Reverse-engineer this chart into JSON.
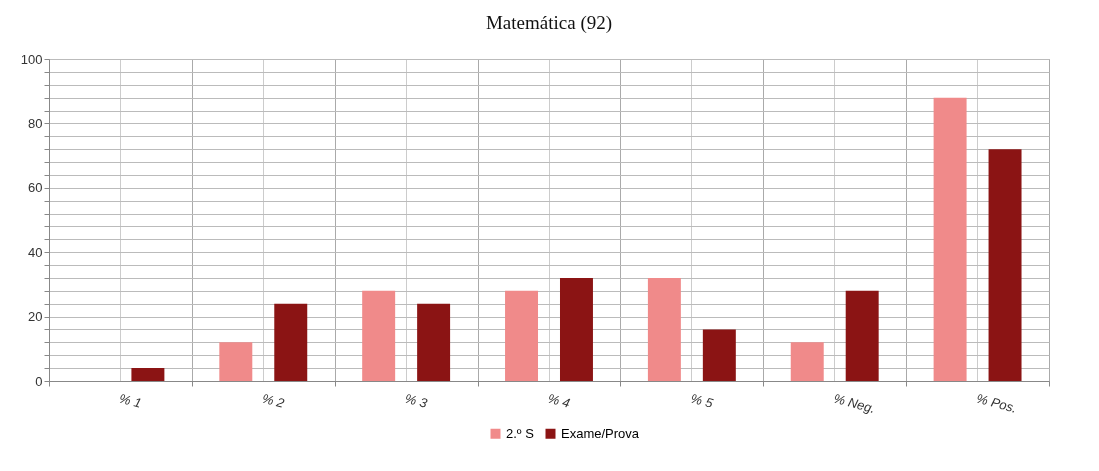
{
  "chart_data": {
    "type": "bar",
    "title": "Matemática (92)",
    "categories": [
      "% 1",
      "% 2",
      "% 3",
      "% 4",
      "% 5",
      "% Neg.",
      "% Pos."
    ],
    "series": [
      {
        "name": "2.º S",
        "color": "#f08a8a",
        "values": [
          0,
          12,
          28,
          28,
          32,
          12,
          88
        ]
      },
      {
        "name": "Exame/Prova",
        "color": "#8b1414",
        "values": [
          4,
          24,
          24,
          32,
          16,
          28,
          72
        ]
      }
    ],
    "ylim": [
      0,
      100
    ],
    "yticks": [
      0,
      {
        "value": 4,
        "label": null
      },
      {
        "value": 8,
        "label": null
      },
      {
        "value": 12,
        "label": null
      },
      {
        "value": 16,
        "label": null
      },
      20,
      {
        "value": 24,
        "label": null
      },
      {
        "value": 28,
        "label": null
      },
      {
        "value": 32,
        "label": null
      },
      {
        "value": 36,
        "label": null
      },
      40,
      {
        "value": 44,
        "label": null
      },
      {
        "value": 48,
        "label": null
      },
      {
        "value": 52,
        "label": null
      },
      {
        "value": 56,
        "label": null
      },
      60,
      {
        "value": 64,
        "label": null
      },
      {
        "value": 68,
        "label": null
      },
      {
        "value": 72,
        "label": null
      },
      {
        "value": 76,
        "label": null
      },
      80,
      {
        "value": 84,
        "label": null
      },
      {
        "value": 88,
        "label": null
      },
      {
        "value": 92,
        "label": null
      },
      {
        "value": 96,
        "label": null
      },
      100
    ],
    "grid": true,
    "legend": "bottom"
  }
}
